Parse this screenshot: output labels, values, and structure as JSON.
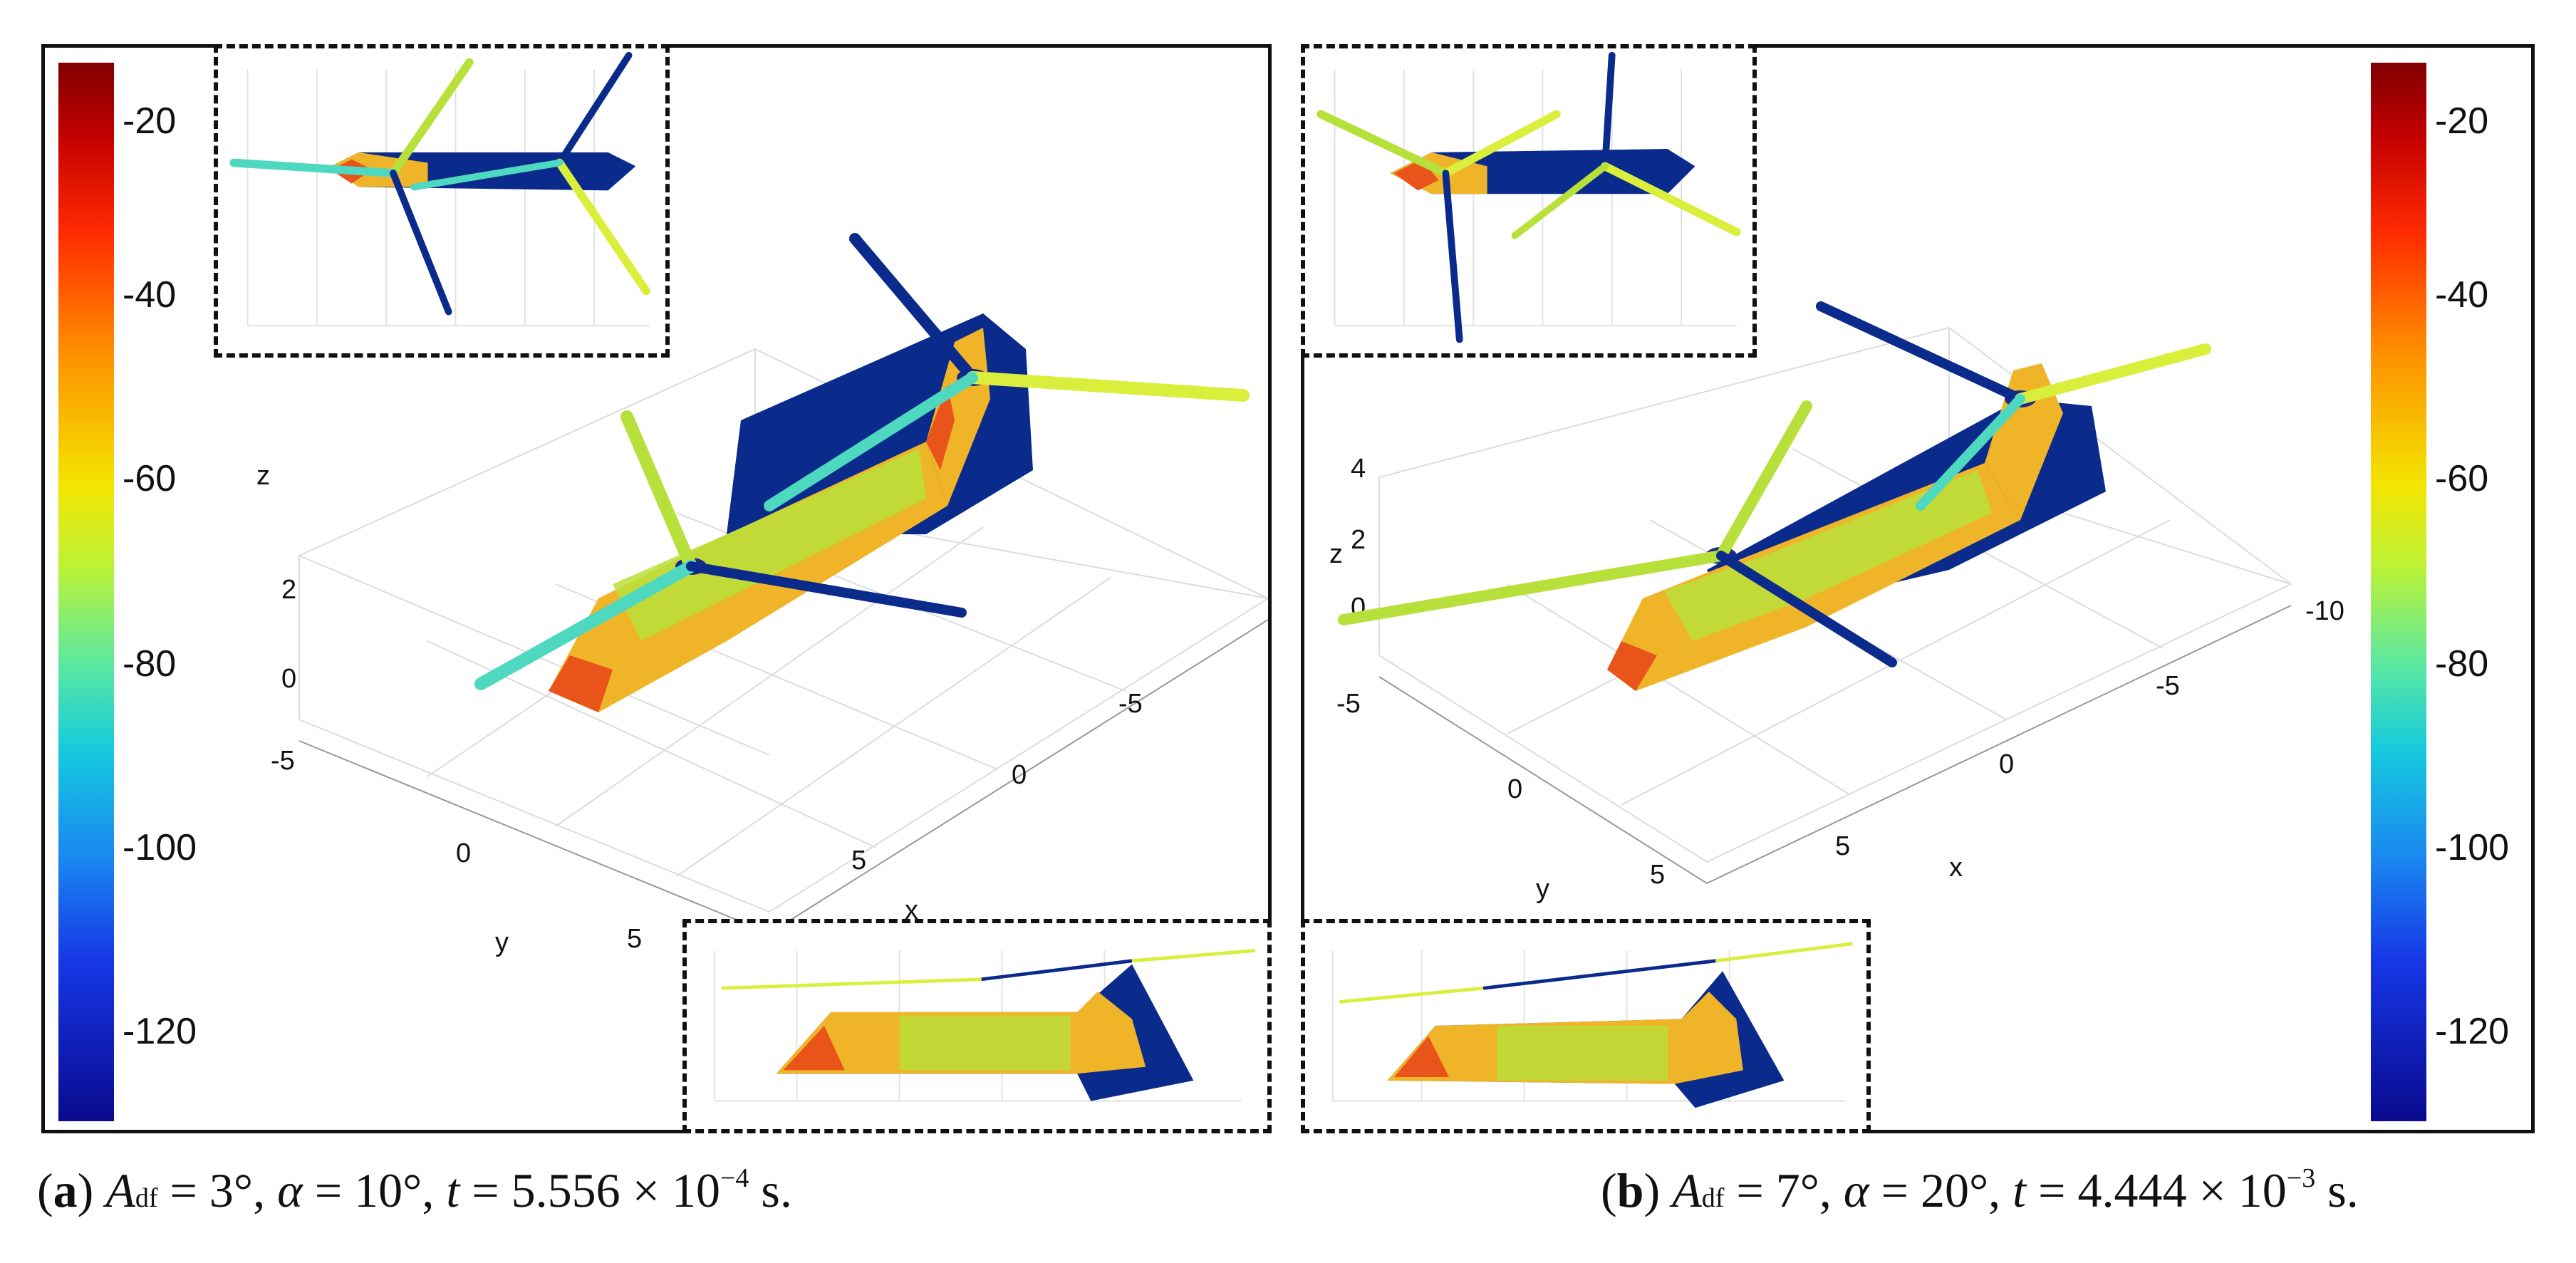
{
  "figure": {
    "panels": [
      {
        "id": "a",
        "colorbar": {
          "ticks": [
            "-20",
            "-40",
            "-60",
            "-80",
            "-100",
            "-120"
          ]
        },
        "axes": {
          "z_label": "z",
          "z_ticks": [
            "2",
            "0"
          ],
          "y_label": "y",
          "y_ticks": [
            "-5",
            "0",
            "5"
          ],
          "x_label": "x",
          "x_ticks": [
            "-5",
            "0",
            "5"
          ]
        },
        "caption": {
          "label": "a",
          "a_var": "A",
          "a_sub": "df",
          "a_val": "3°",
          "alpha_var": "α",
          "alpha_val": "10°",
          "t_var": "t",
          "t_val": "5.556 × 10",
          "t_exp": "−4",
          "t_unit": "s."
        }
      },
      {
        "id": "b",
        "colorbar": {
          "ticks": [
            "-20",
            "-40",
            "-60",
            "-80",
            "-100",
            "-120"
          ]
        },
        "axes": {
          "z_label": "z",
          "z_ticks": [
            "4",
            "2",
            "0"
          ],
          "y_label": "y",
          "y_ticks": [
            "-5",
            "0",
            "5"
          ],
          "x_label": "x",
          "x_ticks": [
            "-10",
            "-5",
            "0",
            "5"
          ]
        },
        "caption": {
          "label": "b",
          "a_var": "A",
          "a_sub": "df",
          "a_val": "7°",
          "alpha_var": "α",
          "alpha_val": "20°",
          "t_var": "t",
          "t_val": "4.444 × 10",
          "t_exp": "−3",
          "t_unit": "s."
        }
      }
    ],
    "colors": {
      "hull_warm": "#f0b428",
      "hull_red": "#e8541a",
      "hull_green": "#b8e03a",
      "shadow_blue": "#0a2a8c",
      "blade_yellow": "#d9ef3c",
      "blade_cyan": "#4fd8c0"
    }
  }
}
